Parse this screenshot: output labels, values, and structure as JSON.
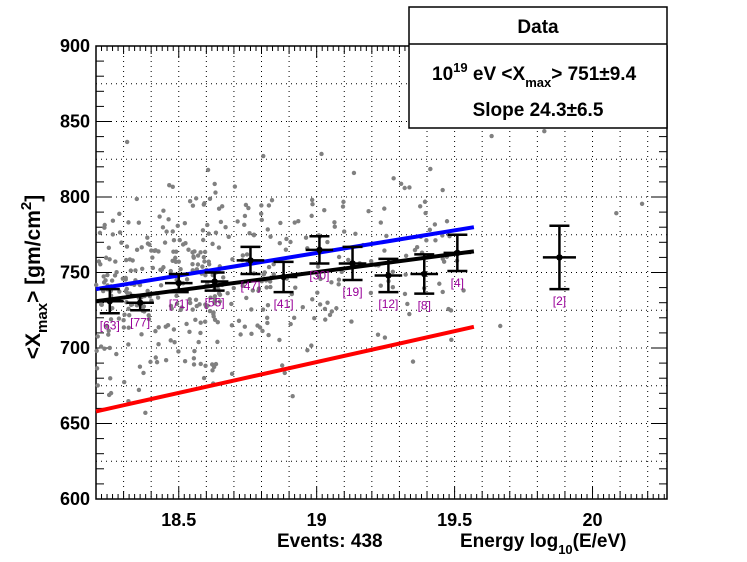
{
  "chart_data": {
    "type": "scatter",
    "title": "Data",
    "xlabel": "log10(E/eV)",
    "ylabel": "<Xmax> [gm/cm2]",
    "xlim": [
      18.2,
      20.27
    ],
    "ylim": [
      600,
      900
    ],
    "x_ticks": [
      18.5,
      19,
      19.5,
      20
    ],
    "x_tick_labels": [
      "18.5",
      "19",
      "19.5",
      "20"
    ],
    "y_ticks": [
      600,
      650,
      700,
      750,
      800,
      850,
      900
    ],
    "y_tick_labels": [
      "600",
      "650",
      "700",
      "750",
      "800",
      "850",
      "900"
    ],
    "legend": {
      "title": "Data",
      "exponent": "19",
      "line1_prefix": "10",
      "line1_mid": " eV <X",
      "line1_sub": "max",
      "line1_suffix": "> 751±9.4",
      "line2": "Slope 24.3±6.5"
    },
    "events_label": "Events: 438",
    "energy_label_prefix": "Energy  log",
    "energy_label_sub": "10",
    "energy_label_suffix": "(E/eV)",
    "ylabel_parts": {
      "prefix": "<X",
      "sub": "max",
      "mid": ">  [gm/cm",
      "sup": "2",
      "suffix": "]"
    },
    "binned_means": [
      {
        "x": 18.25,
        "y": 731,
        "yerr": 8,
        "xerr": 0.05,
        "count": "[63]"
      },
      {
        "x": 18.36,
        "y": 730,
        "yerr": 5,
        "xerr": 0.05,
        "count": "[77]"
      },
      {
        "x": 18.5,
        "y": 743,
        "yerr": 6,
        "xerr": 0.05,
        "count": "[71]"
      },
      {
        "x": 18.63,
        "y": 744,
        "yerr": 6,
        "xerr": 0.05,
        "count": "[55]"
      },
      {
        "x": 18.76,
        "y": 758,
        "yerr": 9,
        "xerr": 0.05,
        "count": "[47]"
      },
      {
        "x": 18.88,
        "y": 747,
        "yerr": 10,
        "xerr": 0.05,
        "count": "[41]"
      },
      {
        "x": 19.01,
        "y": 765,
        "yerr": 9,
        "xerr": 0.05,
        "count": "[30]"
      },
      {
        "x": 19.13,
        "y": 756,
        "yerr": 11,
        "xerr": 0.05,
        "count": "[19]"
      },
      {
        "x": 19.26,
        "y": 748,
        "yerr": 11,
        "xerr": 0.05,
        "count": "[12]"
      },
      {
        "x": 19.39,
        "y": 749,
        "yerr": 13,
        "xerr": 0.05,
        "count": "[8]"
      },
      {
        "x": 19.51,
        "y": 763,
        "yerr": 12,
        "xerr": 0.05,
        "count": "[4]"
      },
      {
        "x": 19.88,
        "y": 760,
        "yerr": 21,
        "xerr": 0.06,
        "count": "[2]"
      }
    ],
    "lines": [
      {
        "name": "fit",
        "color": "#000000",
        "x": [
          18.2,
          19.57
        ],
        "y": [
          731,
          764
        ]
      },
      {
        "name": "upper-model",
        "color": "#0000ff",
        "x": [
          18.2,
          19.57
        ],
        "y": [
          739,
          780
        ]
      },
      {
        "name": "lower-model",
        "color": "#ff0000",
        "x": [
          18.2,
          19.57
        ],
        "y": [
          658,
          714
        ]
      }
    ],
    "points_count": 438,
    "colors": {
      "points": "#808080",
      "labels": "#990099",
      "means": "#000000"
    }
  }
}
